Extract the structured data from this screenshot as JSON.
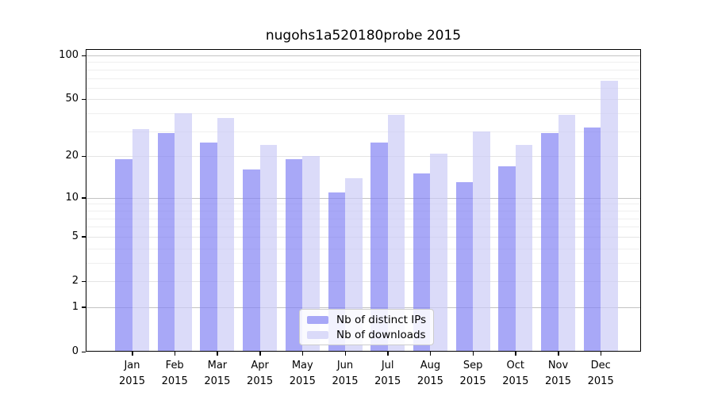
{
  "chart": {
    "title": "nugohs1a520180probe 2015"
  },
  "legend": {
    "items": [
      {
        "label": "Nb of distinct IPs",
        "color": "rgba(131,131,244,0.7)"
      },
      {
        "label": "Nb of downloads",
        "color": "rgba(204,204,247,0.7)"
      }
    ],
    "position": "lower center"
  },
  "chart_data": {
    "type": "bar",
    "title": "nugohs1a520180probe 2015",
    "categories": [
      "Jan",
      "Feb",
      "Mar",
      "Apr",
      "May",
      "Jun",
      "Jul",
      "Aug",
      "Sep",
      "Oct",
      "Nov",
      "Dec"
    ],
    "category_year": "2015",
    "series": [
      {
        "name": "Nb of distinct IPs",
        "color": "rgba(131,131,244,0.7)",
        "values": [
          19,
          29,
          25,
          16,
          19,
          11,
          25,
          15,
          13,
          17,
          29,
          32
        ]
      },
      {
        "name": "Nb of downloads",
        "color": "rgba(204,204,247,0.7)",
        "values": [
          31,
          40,
          37,
          24,
          20,
          14,
          39,
          21,
          30,
          24,
          39,
          67
        ]
      }
    ],
    "y_scale": "log10(1+v)",
    "ylim": [
      0,
      100
    ],
    "y_ticks": [
      0,
      1,
      2,
      5,
      10,
      20,
      50,
      100
    ],
    "gridlines": {
      "major": [
        1,
        10,
        100
      ],
      "mid": [
        2,
        5,
        20,
        50
      ],
      "minor": [
        3,
        4,
        6,
        7,
        8,
        9,
        30,
        40,
        60,
        70,
        80,
        90
      ]
    },
    "grid": true,
    "legend_position": "lower center"
  }
}
